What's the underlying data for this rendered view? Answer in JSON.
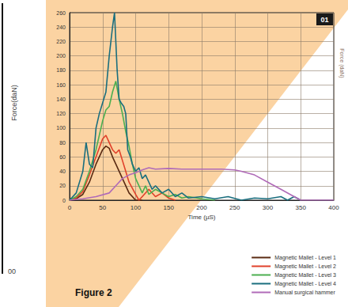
{
  "chart_data": {
    "type": "line",
    "x_label": "Time (µS)",
    "y_label": "Force (daN)",
    "xlim": [
      0,
      400
    ],
    "xticks": [
      0,
      50,
      100,
      150,
      200,
      250,
      300,
      350,
      400
    ],
    "ylim": [
      0,
      260
    ],
    "yticks": [
      0,
      20,
      40,
      60,
      80,
      100,
      120,
      140,
      160,
      180,
      200,
      220,
      240,
      260
    ],
    "grid": true,
    "legend": "lower right",
    "annotations": [
      "01",
      "Figure 2",
      "Force(daN)",
      "00"
    ],
    "series": [
      {
        "name": "Magnetic Mallet - Level 1",
        "color": "#5a2a12",
        "x": [
          0,
          10,
          20,
          30,
          40,
          50,
          55,
          60,
          65,
          70,
          80,
          90,
          100,
          110
        ],
        "values": [
          0,
          2,
          8,
          25,
          50,
          70,
          75,
          72,
          60,
          50,
          30,
          10,
          0,
          0
        ]
      },
      {
        "name": "Magnetic Mallet - Level 2",
        "color": "#e0402a",
        "x": [
          0,
          10,
          20,
          30,
          40,
          50,
          55,
          60,
          65,
          70,
          75,
          80,
          85,
          90,
          100,
          105,
          110,
          120,
          130,
          140,
          150,
          160
        ],
        "values": [
          0,
          3,
          12,
          35,
          60,
          85,
          90,
          80,
          70,
          65,
          70,
          55,
          40,
          25,
          8,
          0,
          5,
          15,
          5,
          10,
          3,
          0
        ]
      },
      {
        "name": "Magnetic Mallet - Level 3",
        "color": "#4caf50",
        "x": [
          0,
          10,
          20,
          30,
          40,
          50,
          55,
          60,
          65,
          70,
          75,
          80,
          85,
          90,
          95,
          100,
          110,
          115,
          120,
          130,
          140,
          150,
          160,
          170,
          180,
          200,
          220
        ],
        "values": [
          0,
          5,
          15,
          40,
          70,
          110,
          125,
          130,
          150,
          165,
          140,
          120,
          95,
          75,
          50,
          30,
          10,
          20,
          8,
          15,
          10,
          5,
          8,
          3,
          5,
          2,
          0
        ]
      },
      {
        "name": "Magnetic Mallet - Level 4",
        "color": "#1a6e7e",
        "x": [
          0,
          10,
          20,
          25,
          30,
          35,
          40,
          45,
          50,
          55,
          60,
          65,
          68,
          72,
          75,
          78,
          82,
          85,
          88,
          92,
          95,
          100,
          105,
          110,
          115,
          120,
          125,
          130,
          140,
          150,
          160,
          170,
          180,
          200,
          220,
          240,
          260,
          280,
          300,
          320,
          330,
          340,
          350
        ],
        "values": [
          0,
          10,
          40,
          80,
          50,
          45,
          100,
          120,
          135,
          150,
          200,
          240,
          260,
          180,
          140,
          135,
          130,
          120,
          70,
          60,
          50,
          40,
          45,
          30,
          35,
          25,
          15,
          20,
          10,
          15,
          5,
          10,
          3,
          5,
          2,
          5,
          0,
          3,
          2,
          5,
          0,
          5,
          0
        ]
      },
      {
        "name": "Manual surgical hammer",
        "color": "#b06bb8",
        "x": [
          0,
          20,
          40,
          60,
          70,
          80,
          90,
          100,
          110,
          120,
          130,
          150,
          170,
          200,
          230,
          250,
          260,
          280,
          300,
          320,
          340,
          350,
          400
        ],
        "values": [
          0,
          2,
          5,
          10,
          20,
          30,
          35,
          38,
          42,
          45,
          43,
          44,
          43,
          43,
          43,
          42,
          40,
          35,
          25,
          15,
          5,
          0,
          0
        ]
      }
    ]
  }
}
